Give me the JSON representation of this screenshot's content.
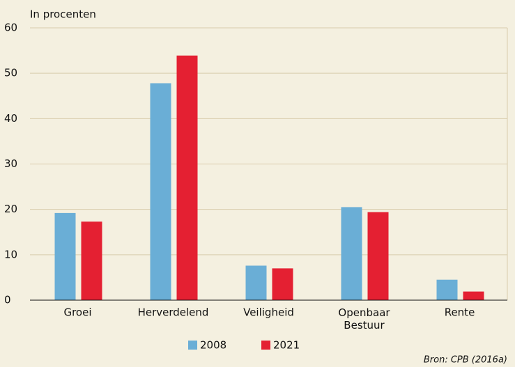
{
  "chart_data": {
    "type": "bar",
    "y_label": "In procenten",
    "categories": [
      "Groei",
      "Herverdelend",
      "Veiligheid",
      "Openbaar\nBestuur",
      "Rente"
    ],
    "series": [
      {
        "name": "2008",
        "color": "#6aaed6",
        "values": [
          19.2,
          47.8,
          7.6,
          20.5,
          4.5
        ]
      },
      {
        "name": "2021",
        "color": "#e42032",
        "values": [
          17.3,
          53.9,
          7.0,
          19.4,
          1.9
        ]
      }
    ],
    "ylim": [
      0,
      60
    ],
    "yticks": [
      0,
      10,
      20,
      30,
      40,
      50,
      60
    ],
    "grid": true,
    "legend": "bottom",
    "source": "Bron: CPB (2016a)"
  }
}
